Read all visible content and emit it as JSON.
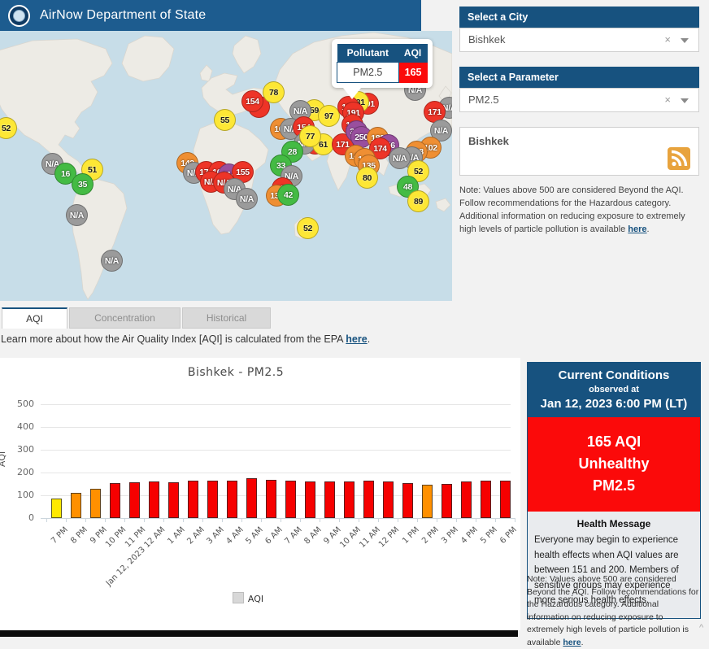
{
  "header": {
    "title": "AirNow Department of State"
  },
  "map": {
    "marker_colors": {
      "green": "#44bb44",
      "yellow": "#fde735",
      "orange": "#ef8f33",
      "red": "#ee3427",
      "purple": "#994f9e",
      "gray": "#9b9b9b"
    },
    "markers": [
      {
        "label": "52",
        "c": "yellow",
        "x": 7,
        "y": 119
      },
      {
        "label": "N/A",
        "c": "gray",
        "x": 64,
        "y": 163
      },
      {
        "label": "51",
        "c": "yellow",
        "x": 113,
        "y": 170
      },
      {
        "label": "16",
        "c": "green",
        "x": 80,
        "y": 175
      },
      {
        "label": "35",
        "c": "green",
        "x": 101,
        "y": 188
      },
      {
        "label": "N/A",
        "c": "gray",
        "x": 94,
        "y": 226
      },
      {
        "label": "N/A",
        "c": "gray",
        "x": 137,
        "y": 282
      },
      {
        "label": "",
        "c": "red",
        "x": 318,
        "y": 93
      },
      {
        "label": "154",
        "c": "red",
        "x": 310,
        "y": 86
      },
      {
        "label": "78",
        "c": "yellow",
        "x": 336,
        "y": 75
      },
      {
        "label": "55",
        "c": "yellow",
        "x": 276,
        "y": 109
      },
      {
        "label": "59",
        "c": "yellow",
        "x": 386,
        "y": 97
      },
      {
        "label": "N/A",
        "c": "gray",
        "x": 369,
        "y": 98
      },
      {
        "label": "97",
        "c": "yellow",
        "x": 404,
        "y": 104
      },
      {
        "label": "108",
        "c": "orange",
        "x": 345,
        "y": 120
      },
      {
        "label": "N/A",
        "c": "gray",
        "x": 357,
        "y": 120
      },
      {
        "label": "154",
        "c": "red",
        "x": 373,
        "y": 118
      },
      {
        "label": "176",
        "c": "red",
        "x": 387,
        "y": 138
      },
      {
        "label": "N/A",
        "c": "gray",
        "x": 374,
        "y": 138
      },
      {
        "label": "61",
        "c": "yellow",
        "x": 397,
        "y": 139
      },
      {
        "label": "77",
        "c": "yellow",
        "x": 381,
        "y": 129
      },
      {
        "label": "171",
        "c": "red",
        "x": 421,
        "y": 139
      },
      {
        "label": "28",
        "c": "green",
        "x": 359,
        "y": 148
      },
      {
        "label": "33",
        "c": "green",
        "x": 345,
        "y": 165
      },
      {
        "label": "N/A",
        "c": "gray",
        "x": 358,
        "y": 178
      },
      {
        "label": "143",
        "c": "orange",
        "x": 230,
        "y": 162
      },
      {
        "label": "N/A",
        "c": "gray",
        "x": 238,
        "y": 174
      },
      {
        "label": "175",
        "c": "red",
        "x": 253,
        "y": 173
      },
      {
        "label": "162",
        "c": "red",
        "x": 269,
        "y": 173
      },
      {
        "label": "214",
        "c": "purple",
        "x": 281,
        "y": 176
      },
      {
        "label": "155",
        "c": "red",
        "x": 298,
        "y": 173
      },
      {
        "label": "N/A",
        "c": "red",
        "x": 259,
        "y": 185
      },
      {
        "label": "N/A",
        "c": "red",
        "x": 275,
        "y": 186
      },
      {
        "label": "N/A",
        "c": "gray",
        "x": 288,
        "y": 194
      },
      {
        "label": "N/A",
        "c": "gray",
        "x": 303,
        "y": 206
      },
      {
        "label": "154",
        "c": "red",
        "x": 347,
        "y": 193
      },
      {
        "label": "138",
        "c": "orange",
        "x": 340,
        "y": 202
      },
      {
        "label": "42",
        "c": "green",
        "x": 354,
        "y": 201
      },
      {
        "label": "52",
        "c": "yellow",
        "x": 378,
        "y": 242
      },
      {
        "label": "N/A",
        "c": "gray",
        "x": 510,
        "y": 72
      },
      {
        "label": "N/A",
        "c": "gray",
        "x": 552,
        "y": 94
      },
      {
        "label": "171",
        "c": "red",
        "x": 534,
        "y": 99
      },
      {
        "label": "N/A",
        "c": "gray",
        "x": 542,
        "y": 122
      },
      {
        "label": "191",
        "c": "red",
        "x": 452,
        "y": 89
      },
      {
        "label": "131",
        "c": "yellow",
        "x": 440,
        "y": 87
      },
      {
        "label": "133",
        "c": "red",
        "x": 428,
        "y": 93
      },
      {
        "label": "191",
        "c": "red",
        "x": 434,
        "y": 100
      },
      {
        "label": "155",
        "c": "red",
        "x": 433,
        "y": 115
      },
      {
        "label": "362",
        "c": "purple",
        "x": 438,
        "y": 123
      },
      {
        "label": "250",
        "c": "purple",
        "x": 444,
        "y": 130
      },
      {
        "label": "182",
        "c": "orange",
        "x": 464,
        "y": 131
      },
      {
        "label": "246",
        "c": "purple",
        "x": 477,
        "y": 140
      },
      {
        "label": "174",
        "c": "red",
        "x": 467,
        "y": 144
      },
      {
        "label": "144",
        "c": "orange",
        "x": 437,
        "y": 153
      },
      {
        "label": "140",
        "c": "orange",
        "x": 448,
        "y": 157
      },
      {
        "label": "135",
        "c": "orange",
        "x": 453,
        "y": 165
      },
      {
        "label": "80",
        "c": "yellow",
        "x": 451,
        "y": 180
      },
      {
        "label": "102",
        "c": "orange",
        "x": 529,
        "y": 143
      },
      {
        "label": "128",
        "c": "orange",
        "x": 512,
        "y": 148
      },
      {
        "label": "N/A",
        "c": "gray",
        "x": 506,
        "y": 155
      },
      {
        "label": "N/A",
        "c": "gray",
        "x": 491,
        "y": 156
      },
      {
        "label": "52",
        "c": "yellow",
        "x": 514,
        "y": 172
      },
      {
        "label": "48",
        "c": "green",
        "x": 501,
        "y": 191
      },
      {
        "label": "89",
        "c": "yellow",
        "x": 514,
        "y": 209
      }
    ],
    "tooltip": {
      "pollutant_header": "Pollutant",
      "aqi_header": "AQI",
      "pollutant": "PM2.5",
      "aqi": "165",
      "aqi_color": "#fb0a0a"
    }
  },
  "sidebar": {
    "city_select": {
      "label": "Select a City",
      "value": "Bishkek",
      "clear_glyph": "×"
    },
    "parameter_select": {
      "label": "Select a Parameter",
      "value": "PM2.5",
      "clear_glyph": "×"
    },
    "feed_box": {
      "city": "Bishkek"
    },
    "note": {
      "text": "Note: Values above 500 are considered Beyond the AQI. Follow recommendations for the Hazardous category. Additional information on reducing exposure to extremely high levels of particle pollution is available ",
      "link_text": "here",
      "text_after": "."
    }
  },
  "tabs": [
    {
      "label": "AQI",
      "active": true
    },
    {
      "label": "Concentration",
      "active": false
    },
    {
      "label": "Historical",
      "active": false
    }
  ],
  "learn_more": {
    "text": "Learn more about how the Air Quality Index [AQI] is calculated from the EPA ",
    "link_text": "here",
    "text_after": "."
  },
  "chart_data": {
    "type": "bar",
    "title": "Bishkek - PM2.5",
    "ylabel": "AQI",
    "ylim": [
      0,
      500
    ],
    "yticks": [
      0,
      100,
      200,
      300,
      400,
      500
    ],
    "grid": true,
    "legend_label": "AQI",
    "legend_position": "bottom-center",
    "categories": [
      "7 PM",
      "8 PM",
      "9 PM",
      "10 PM",
      "11 PM",
      "Jan 12, 2023 12 AM",
      "1 AM",
      "2 AM",
      "3 AM",
      "4 AM",
      "5 AM",
      "6 AM",
      "7 AM",
      "8 AM",
      "9 AM",
      "10 AM",
      "11 AM",
      "12 PM",
      "1 PM",
      "2 PM",
      "3 PM",
      "4 PM",
      "5 PM",
      "6 PM"
    ],
    "values": [
      85,
      110,
      127,
      152,
      156,
      162,
      157,
      165,
      165,
      165,
      174,
      168,
      166,
      162,
      161,
      162,
      164,
      162,
      155,
      146,
      151,
      161,
      164,
      165
    ],
    "bar_color_rules": {
      "yellow_max": 100,
      "orange_max": 150
    },
    "bar_colors": {
      "yellow": "#ffe900",
      "orange": "#ff9000",
      "red": "#f60000"
    }
  },
  "current_conditions": {
    "title": "Current Conditions",
    "subtitle": "observed at",
    "timestamp": "Jan 12, 2023 6:00 PM (LT)",
    "aqi_value": "165 AQI",
    "category": "Unhealthy",
    "pollutant": "PM2.5",
    "health_title": "Health Message",
    "health_message": "Everyone may begin to experience health effects when AQI values are between 151 and 200. Members of sensitive groups may experience more serious health effects.",
    "note": {
      "text": "Note: Values above 500 are considered Beyond the AQI. Follow recommendations for the Hazardous category. Additional information on reducing exposure to extremely high levels of particle pollution is available ",
      "link_text": "here",
      "text_after": "."
    }
  }
}
